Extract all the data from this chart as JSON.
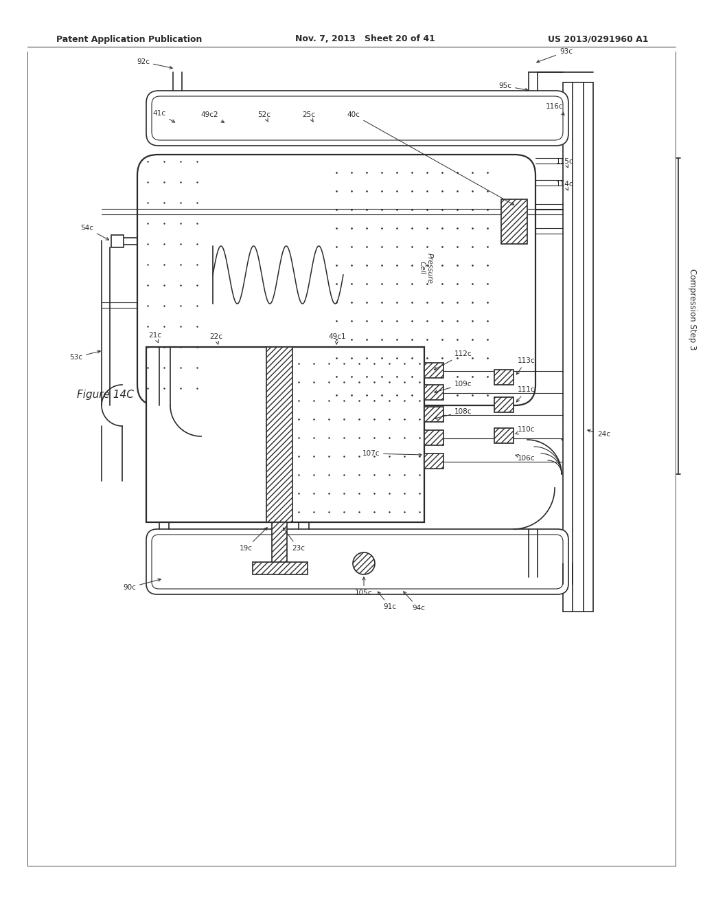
{
  "header_left": "Patent Application Publication",
  "header_mid": "Nov. 7, 2013   Sheet 20 of 41",
  "header_right": "US 2013/0291960 A1",
  "figure_label": "Figure 14C",
  "compression_label": "Compression Step 3",
  "bg": "#ffffff",
  "lc": "#2a2a2a"
}
